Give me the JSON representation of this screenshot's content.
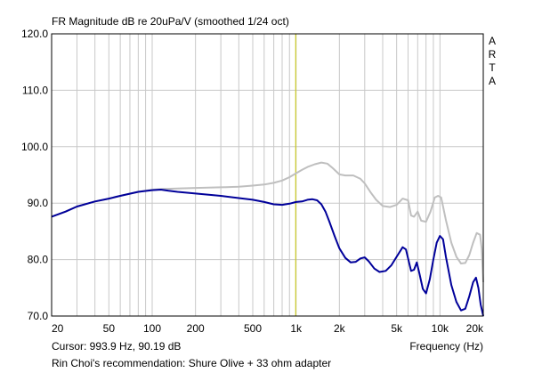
{
  "chart_data": {
    "type": "line",
    "title": "FR Magnitude dB re 20uPa/V (smoothed 1/24 oct)",
    "brand": "ARTA",
    "xlabel": "Frequency (Hz)",
    "xscale": "log",
    "xlim": [
      20,
      20000
    ],
    "ylim": [
      70,
      120
    ],
    "x_ticks": [
      {
        "value": 20,
        "label": "20"
      },
      {
        "value": 50,
        "label": "50"
      },
      {
        "value": 100,
        "label": "100"
      },
      {
        "value": 200,
        "label": "200"
      },
      {
        "value": 500,
        "label": "500"
      },
      {
        "value": 1000,
        "label": "1k"
      },
      {
        "value": 2000,
        "label": "2k"
      },
      {
        "value": 5000,
        "label": "5k"
      },
      {
        "value": 10000,
        "label": "10k"
      },
      {
        "value": 20000,
        "label": "20k"
      }
    ],
    "y_ticks": [
      {
        "value": 120,
        "label": "120.0"
      },
      {
        "value": 110,
        "label": "110.0"
      },
      {
        "value": 100,
        "label": "100.0"
      },
      {
        "value": 90,
        "label": "90.0"
      },
      {
        "value": 80,
        "label": "80.0"
      },
      {
        "value": 70,
        "label": "70.0"
      }
    ],
    "grid": true,
    "cursor": {
      "frequency": 993.9,
      "readout": "Cursor: 993.9 Hz, 90.19 dB",
      "color": "#c8c800"
    },
    "caption": "Rin Choi's recommendation: Shure Olive + 33 ohm adapter",
    "series": [
      {
        "color": "#bfbfbf",
        "points": [
          [
            20,
            87.6
          ],
          [
            25,
            88.5
          ],
          [
            30,
            89.4
          ],
          [
            40,
            90.3
          ],
          [
            50,
            90.8
          ],
          [
            60,
            91.3
          ],
          [
            80,
            92.0
          ],
          [
            100,
            92.4
          ],
          [
            120,
            92.5
          ],
          [
            150,
            92.6
          ],
          [
            200,
            92.7
          ],
          [
            300,
            92.8
          ],
          [
            400,
            92.9
          ],
          [
            500,
            93.1
          ],
          [
            600,
            93.3
          ],
          [
            700,
            93.6
          ],
          [
            800,
            94.0
          ],
          [
            900,
            94.6
          ],
          [
            1000,
            95.3
          ],
          [
            1100,
            95.9
          ],
          [
            1200,
            96.4
          ],
          [
            1350,
            96.9
          ],
          [
            1500,
            97.2
          ],
          [
            1650,
            97.0
          ],
          [
            1800,
            96.2
          ],
          [
            2000,
            95.1
          ],
          [
            2200,
            94.9
          ],
          [
            2500,
            94.9
          ],
          [
            2800,
            94.3
          ],
          [
            3000,
            93.5
          ],
          [
            3300,
            91.9
          ],
          [
            3600,
            90.6
          ],
          [
            4000,
            89.5
          ],
          [
            4500,
            89.3
          ],
          [
            5000,
            89.7
          ],
          [
            5500,
            90.8
          ],
          [
            6000,
            90.5
          ],
          [
            6300,
            87.8
          ],
          [
            6600,
            87.6
          ],
          [
            7000,
            88.5
          ],
          [
            7400,
            86.9
          ],
          [
            8000,
            86.7
          ],
          [
            8600,
            88.5
          ],
          [
            9200,
            91.0
          ],
          [
            9700,
            91.3
          ],
          [
            10200,
            91.0
          ],
          [
            11000,
            87.0
          ],
          [
            12000,
            83.0
          ],
          [
            13000,
            80.5
          ],
          [
            14000,
            79.3
          ],
          [
            15000,
            79.4
          ],
          [
            16000,
            80.8
          ],
          [
            17000,
            83.0
          ],
          [
            18000,
            84.7
          ],
          [
            19000,
            84.4
          ],
          [
            19500,
            82.0
          ],
          [
            20000,
            76.0
          ]
        ]
      },
      {
        "color": "#00009a",
        "points": [
          [
            20,
            87.6
          ],
          [
            25,
            88.5
          ],
          [
            30,
            89.4
          ],
          [
            40,
            90.3
          ],
          [
            50,
            90.8
          ],
          [
            60,
            91.3
          ],
          [
            80,
            92.0
          ],
          [
            100,
            92.3
          ],
          [
            115,
            92.4
          ],
          [
            130,
            92.2
          ],
          [
            150,
            92.0
          ],
          [
            200,
            91.7
          ],
          [
            300,
            91.3
          ],
          [
            400,
            90.9
          ],
          [
            500,
            90.6
          ],
          [
            600,
            90.2
          ],
          [
            700,
            89.8
          ],
          [
            800,
            89.7
          ],
          [
            900,
            89.9
          ],
          [
            1000,
            90.2
          ],
          [
            1100,
            90.3
          ],
          [
            1200,
            90.6
          ],
          [
            1300,
            90.7
          ],
          [
            1400,
            90.5
          ],
          [
            1500,
            89.8
          ],
          [
            1600,
            88.5
          ],
          [
            1700,
            86.8
          ],
          [
            1850,
            84.2
          ],
          [
            2000,
            82.0
          ],
          [
            2200,
            80.3
          ],
          [
            2400,
            79.5
          ],
          [
            2600,
            79.6
          ],
          [
            2800,
            80.2
          ],
          [
            3000,
            80.4
          ],
          [
            3200,
            79.7
          ],
          [
            3500,
            78.4
          ],
          [
            3800,
            77.8
          ],
          [
            4200,
            78.0
          ],
          [
            4600,
            79.0
          ],
          [
            5000,
            80.5
          ],
          [
            5500,
            82.2
          ],
          [
            5800,
            81.8
          ],
          [
            6100,
            79.5
          ],
          [
            6300,
            78.0
          ],
          [
            6600,
            78.2
          ],
          [
            6900,
            79.5
          ],
          [
            7200,
            77.5
          ],
          [
            7600,
            74.8
          ],
          [
            8000,
            74.0
          ],
          [
            8500,
            76.5
          ],
          [
            9000,
            80.0
          ],
          [
            9500,
            83.0
          ],
          [
            10000,
            84.2
          ],
          [
            10500,
            83.6
          ],
          [
            11000,
            80.5
          ],
          [
            12000,
            75.5
          ],
          [
            13000,
            72.5
          ],
          [
            14000,
            71.0
          ],
          [
            15000,
            71.3
          ],
          [
            16000,
            73.5
          ],
          [
            17000,
            76.0
          ],
          [
            17800,
            76.8
          ],
          [
            18500,
            75.0
          ],
          [
            19200,
            72.0
          ],
          [
            20000,
            70.0
          ]
        ]
      }
    ]
  }
}
